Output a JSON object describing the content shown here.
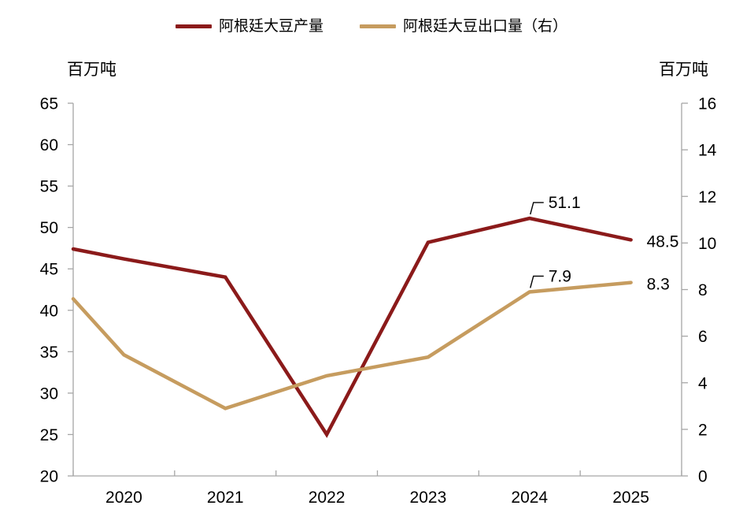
{
  "legend": {
    "items": [
      {
        "label": "阿根廷大豆产量"
      },
      {
        "label": "阿根廷大豆出口量（右）"
      }
    ]
  },
  "chart_data": {
    "type": "line",
    "categories": [
      "2020",
      "2021",
      "2022",
      "2023",
      "2024",
      "2025"
    ],
    "series": [
      {
        "name": "阿根廷大豆产量",
        "axis": "left",
        "color": "#8B1A1A",
        "edge_value": 47.4,
        "values": [
          46.2,
          44.0,
          25.0,
          48.2,
          51.1,
          48.5
        ]
      },
      {
        "name": "阿根廷大豆出口量（右）",
        "axis": "right",
        "color": "#C69C5F",
        "edge_value": 7.6,
        "values": [
          5.2,
          2.9,
          4.3,
          5.1,
          7.9,
          8.3
        ]
      }
    ],
    "left_axis": {
      "title": "百万吨",
      "min": 20,
      "max": 65,
      "step": 5
    },
    "right_axis": {
      "title": "百万吨",
      "min": 0,
      "max": 16,
      "step": 2
    },
    "annotations": [
      {
        "series": 0,
        "category": "2024",
        "text": "51.1",
        "style": "leader"
      },
      {
        "series": 0,
        "category": "2025",
        "text": "48.5",
        "style": "end"
      },
      {
        "series": 1,
        "category": "2024",
        "text": "7.9",
        "style": "leader"
      },
      {
        "series": 1,
        "category": "2025",
        "text": "8.3",
        "style": "end"
      }
    ],
    "grid": false,
    "legend_position": "top-center",
    "axis_color": "#A6A6A6"
  }
}
